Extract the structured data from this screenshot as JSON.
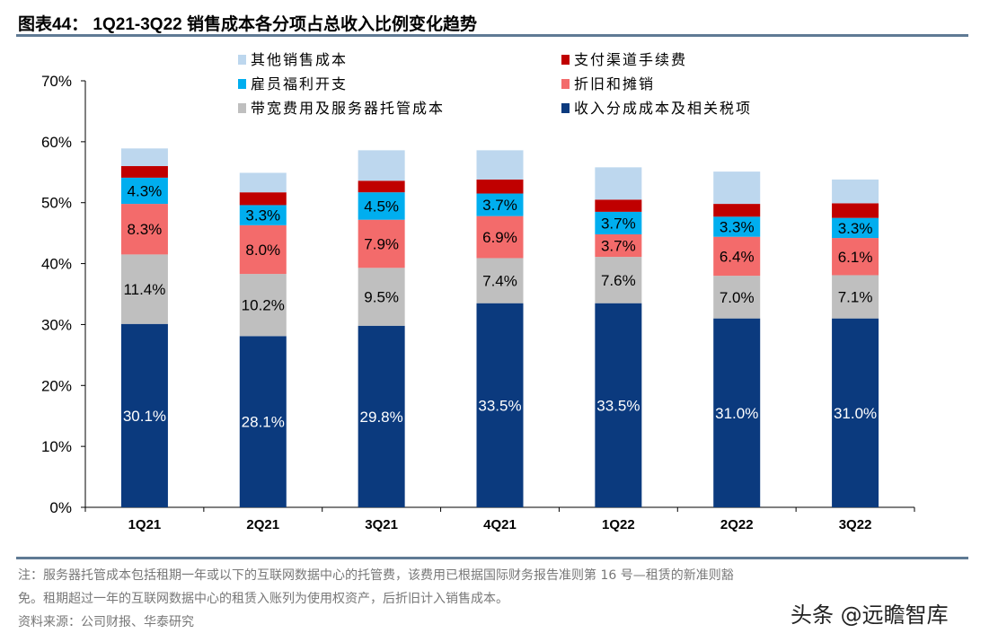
{
  "title": "图表44： 1Q21-3Q22 销售成本各分项占总收入比例变化趋势",
  "notes": [
    "注：服务器托管成本包括租期一年或以下的互联网数据中心的托管费，该费用已根据国际财务报告准则第 16 号—租赁的新准则豁",
    "免。租期超过一年的互联网数据中心的租赁入账列为使用权资产，后折旧计入销售成本。",
    "资料来源：公司财报、华泰研究"
  ],
  "watermark": "头条 @远瞻智库",
  "chart_data": {
    "type": "bar",
    "stacked": true,
    "categories": [
      "1Q21",
      "2Q21",
      "3Q21",
      "4Q21",
      "1Q22",
      "2Q22",
      "3Q22"
    ],
    "ylim": [
      0,
      70
    ],
    "yticks": [
      "0%",
      "10%",
      "20%",
      "30%",
      "40%",
      "50%",
      "60%",
      "70%"
    ],
    "grid": false,
    "legend_position": "top",
    "series": [
      {
        "name": "收入分成成本及相关税项",
        "color": "#0B3A7E",
        "values": [
          30.1,
          28.1,
          29.8,
          33.5,
          33.5,
          31.0,
          31.0
        ],
        "labels": [
          "30.1%",
          "28.1%",
          "29.8%",
          "33.5%",
          "33.5%",
          "31.0%",
          "31.0%"
        ],
        "label_color": "#ffffff"
      },
      {
        "name": "带宽费用及服务器托管成本",
        "color": "#BFBFBF",
        "values": [
          11.4,
          10.2,
          9.5,
          7.4,
          7.6,
          7.0,
          7.1
        ],
        "labels": [
          "11.4%",
          "10.2%",
          "9.5%",
          "7.4%",
          "7.6%",
          "7.0%",
          "7.1%"
        ],
        "label_color": "#000000"
      },
      {
        "name": "折旧和摊销",
        "color": "#F36B6B",
        "values": [
          8.3,
          8.0,
          7.9,
          6.9,
          3.7,
          6.4,
          6.1
        ],
        "labels": [
          "8.3%",
          "8.0%",
          "7.9%",
          "6.9%",
          "3.7%",
          "6.4%",
          "6.1%"
        ],
        "label_color": "#000000"
      },
      {
        "name": "雇员福利开支",
        "color": "#00AEEF",
        "values": [
          4.3,
          3.3,
          4.5,
          3.7,
          3.7,
          3.3,
          3.3
        ],
        "labels": [
          "4.3%",
          "3.3%",
          "4.5%",
          "3.7%",
          "3.7%",
          "3.3%",
          "3.3%"
        ],
        "label_color": "#000000"
      },
      {
        "name": "支付渠道手续费",
        "color": "#C00000",
        "values": [
          1.9,
          2.1,
          1.9,
          2.3,
          2.0,
          2.1,
          2.4
        ]
      },
      {
        "name": "其他销售成本",
        "color": "#BDD7EE",
        "values": [
          2.9,
          3.2,
          5.0,
          4.8,
          5.3,
          5.3,
          3.9
        ]
      }
    ],
    "legend_order": [
      5,
      4,
      3,
      2,
      1,
      0
    ]
  }
}
